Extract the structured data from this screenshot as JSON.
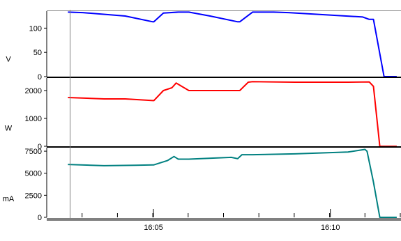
{
  "chart_data": [
    {
      "type": "line",
      "ylabel": "V",
      "ylim": [
        0,
        135
      ],
      "yticks": [
        0,
        50,
        100
      ],
      "ytick_labels": [
        "0",
        "50",
        "100"
      ],
      "xlim": [
        16.033,
        16.2
      ],
      "color": "#0000ff",
      "x": [
        16.043,
        16.05,
        16.07,
        16.083,
        16.0835,
        16.088,
        16.095,
        16.1,
        16.11,
        16.123,
        16.124,
        16.13,
        16.14,
        16.147,
        16.182,
        16.185,
        16.1855,
        16.187,
        16.192,
        16.198
      ],
      "values": [
        133,
        132,
        125,
        113,
        113,
        131,
        133,
        133,
        125,
        113,
        113,
        133,
        133,
        132,
        123,
        118,
        118,
        118,
        0,
        0
      ]
    },
    {
      "type": "line",
      "ylabel": "W",
      "ylim": [
        0,
        2450
      ],
      "yticks": [
        0,
        1000,
        2000
      ],
      "ytick_labels": [
        "0",
        "1000",
        "2000"
      ],
      "xlim": [
        16.033,
        16.2
      ],
      "color": "#ff0000",
      "x": [
        16.043,
        16.06,
        16.07,
        16.083,
        16.0835,
        16.088,
        16.092,
        16.094,
        16.1,
        16.11,
        16.124,
        16.128,
        16.13,
        16.15,
        16.175,
        16.185,
        16.187,
        16.19,
        16.198
      ],
      "values": [
        1750,
        1700,
        1700,
        1640,
        1640,
        2000,
        2100,
        2270,
        2000,
        2000,
        2000,
        2300,
        2320,
        2300,
        2300,
        2310,
        2150,
        0,
        0
      ]
    },
    {
      "type": "line",
      "ylabel": "mA",
      "ylim": [
        0,
        7900
      ],
      "yticks": [
        0,
        2500,
        5000,
        7500
      ],
      "ytick_labels": [
        "0",
        "2500",
        "5000",
        "7500"
      ],
      "xlim": [
        16.033,
        16.2
      ],
      "color": "#008080",
      "x": [
        16.043,
        16.06,
        16.075,
        16.083,
        16.0835,
        16.09,
        16.093,
        16.095,
        16.1,
        16.12,
        16.123,
        16.125,
        16.13,
        16.15,
        16.175,
        16.183,
        16.184,
        16.187,
        16.19,
        16.198
      ],
      "values": [
        6000,
        5850,
        5900,
        5950,
        5950,
        6450,
        6900,
        6600,
        6600,
        6800,
        6650,
        7100,
        7100,
        7200,
        7400,
        7700,
        7500,
        4000,
        0,
        0
      ],
      "xticks": [
        16.0833,
        16.1667
      ],
      "xtick_labels": [
        "16:05",
        "16:10"
      ]
    }
  ]
}
